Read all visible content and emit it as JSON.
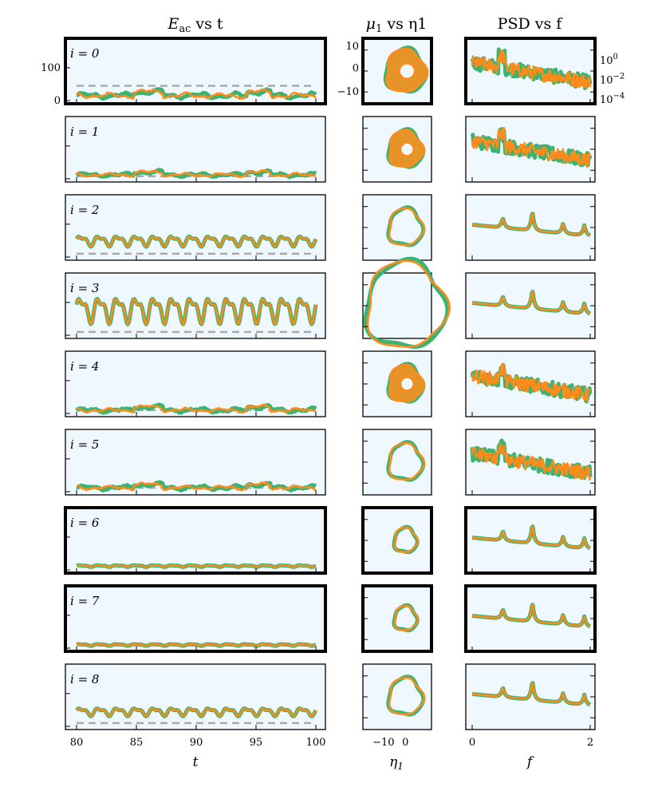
{
  "figure": {
    "column_titles": [
      "E_ac vs t",
      "μ1 vs η1",
      "PSD vs f"
    ],
    "column_title_main": [
      "E",
      "μ",
      "PSD"
    ],
    "column_title_sub": [
      "ac",
      "1",
      ""
    ],
    "column_title_rest": [
      " vs t",
      " vs η1",
      " vs f"
    ],
    "x_labels": [
      "t",
      "η1",
      "f"
    ],
    "panel_labels": [
      "i = 0",
      "i = 1",
      "i = 2",
      "i = 3",
      "i = 4",
      "i = 5",
      "i = 6",
      "i = 7",
      "i = 8"
    ],
    "thick_border_rows": [
      0,
      6,
      7
    ]
  },
  "colors": {
    "series_a": "#3cb371",
    "series_b": "#ff8c1a",
    "threshold": "#a9a9a9",
    "panel_bg": "#f0f8ff"
  },
  "chart_data": [
    {
      "type": "line",
      "title": "E_ac vs t",
      "xlabel": "t",
      "ylabel": "",
      "xlim": [
        80,
        100
      ],
      "ylim": [
        0,
        180
      ],
      "xticks": [
        80,
        85,
        90,
        95,
        100
      ],
      "yticks": [
        0,
        100
      ],
      "threshold_line": 45,
      "rows": [
        {
          "label": "i = 0",
          "mode": "chaotic",
          "base": 15,
          "amp": 10,
          "thresh": 45
        },
        {
          "label": "i = 1",
          "mode": "chaotic",
          "base": 12,
          "amp": 7,
          "thresh": 8
        },
        {
          "label": "i = 2",
          "mode": "periodic",
          "base": 50,
          "amp": 18,
          "thresh": 10
        },
        {
          "label": "i = 3",
          "mode": "periodic",
          "base": 80,
          "amp": 45,
          "thresh": 10
        },
        {
          "label": "i = 4",
          "mode": "chaotic",
          "base": 10,
          "amp": 8,
          "thresh": 10
        },
        {
          "label": "i = 5",
          "mode": "chaotic",
          "base": 12,
          "amp": 8,
          "thresh": 12
        },
        {
          "label": "i = 6",
          "mode": "periodic",
          "base": 12,
          "amp": 3,
          "thresh": null
        },
        {
          "label": "i = 7",
          "mode": "periodic",
          "base": 10,
          "amp": 3,
          "thresh": null
        },
        {
          "label": "i = 8",
          "mode": "periodic",
          "base": 45,
          "amp": 14,
          "thresh": 10
        }
      ]
    },
    {
      "type": "scatter",
      "title": "μ1 vs η1",
      "xlabel": "η1",
      "ylabel": "",
      "xlim": [
        -18,
        10
      ],
      "ylim": [
        -14,
        12
      ],
      "xticks": [
        -10,
        0
      ],
      "yticks": [
        -10,
        0,
        10
      ],
      "rows": [
        {
          "label": "i = 0",
          "radius": 7,
          "filled": true
        },
        {
          "label": "i = 1",
          "radius": 6,
          "filled": true
        },
        {
          "label": "i = 2",
          "radius": 6,
          "filled": false
        },
        {
          "label": "i = 3",
          "radius": 14,
          "filled": false
        },
        {
          "label": "i = 4",
          "radius": 6,
          "filled": true
        },
        {
          "label": "i = 5",
          "radius": 6,
          "filled": false
        },
        {
          "label": "i = 6",
          "radius": 4,
          "filled": false
        },
        {
          "label": "i = 7",
          "radius": 4,
          "filled": false
        },
        {
          "label": "i = 8",
          "radius": 6,
          "filled": false
        }
      ]
    },
    {
      "type": "line",
      "title": "PSD vs f",
      "xlabel": "f",
      "ylabel": "",
      "xlim": [
        0,
        2
      ],
      "yscale": "log",
      "ylim_exp": [
        -4,
        1.5
      ],
      "xticks": [
        0,
        2
      ],
      "yticks": [
        "10^0",
        "10^-2",
        "10^-4"
      ],
      "rows": [
        {
          "label": "i = 0",
          "mode": "chaotic"
        },
        {
          "label": "i = 1",
          "mode": "chaotic"
        },
        {
          "label": "i = 2",
          "mode": "peaks"
        },
        {
          "label": "i = 3",
          "mode": "peaks"
        },
        {
          "label": "i = 4",
          "mode": "chaotic"
        },
        {
          "label": "i = 5",
          "mode": "chaotic"
        },
        {
          "label": "i = 6",
          "mode": "peaks"
        },
        {
          "label": "i = 7",
          "mode": "peaks"
        },
        {
          "label": "i = 8",
          "mode": "peaks"
        }
      ]
    }
  ]
}
